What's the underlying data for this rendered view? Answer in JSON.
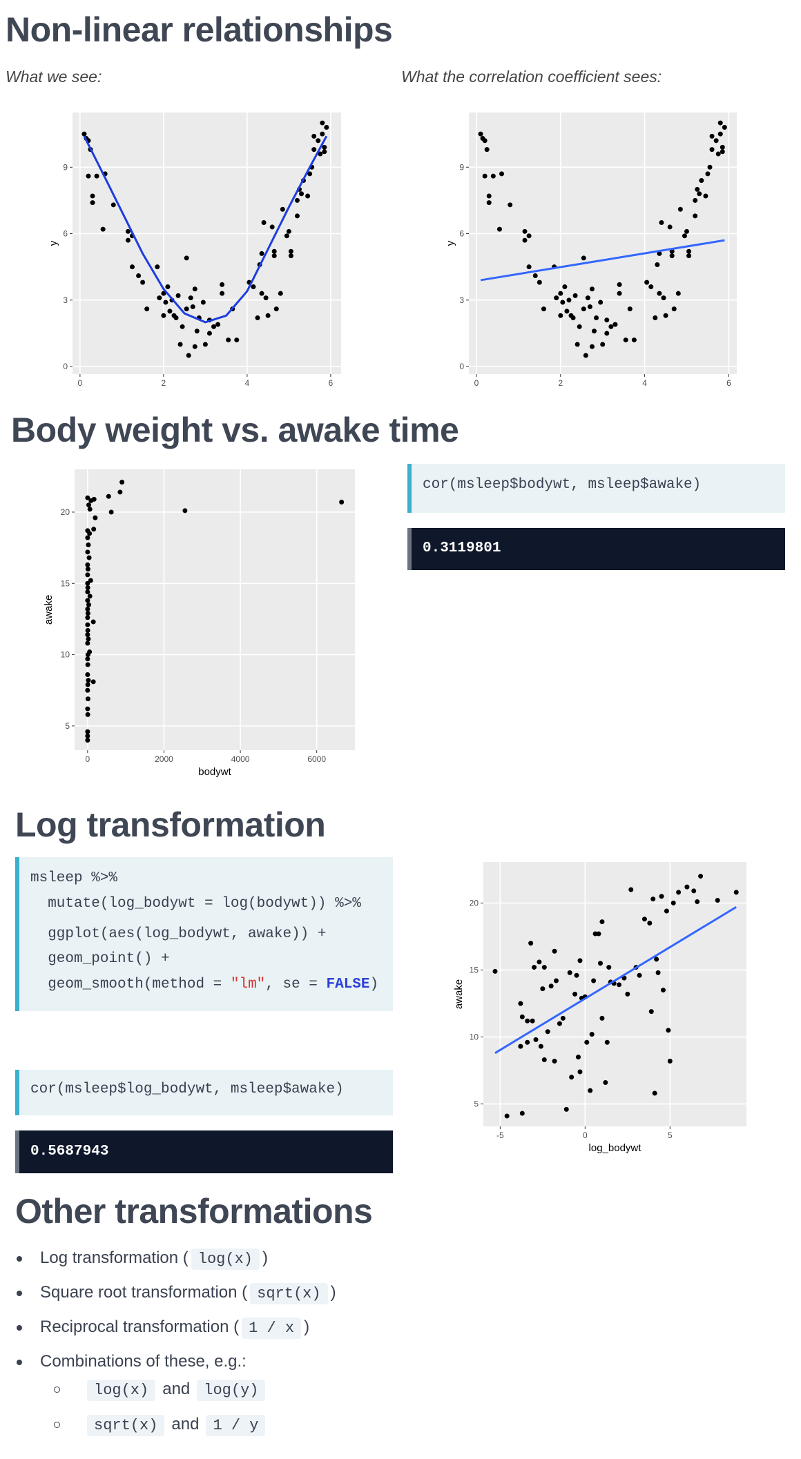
{
  "nonlinear": {
    "title": "Non-linear relationships",
    "captions": [
      "What we see:",
      "What the correlation coefficient sees:"
    ],
    "charts": [
      {
        "type": "scatter",
        "y_label": "y",
        "x": [
          0.1,
          0.15,
          0.2,
          0.25,
          0.2,
          0.4,
          0.6,
          0.3,
          0.3,
          0.55,
          0.8,
          1.15,
          1.25,
          1.15,
          1.25,
          1.4,
          1.5,
          1.6,
          1.85,
          1.9,
          2.0,
          2.05,
          2.0,
          2.1,
          2.15,
          2.2,
          2.25,
          2.3,
          2.35,
          2.45,
          2.55,
          2.4,
          2.6,
          2.55,
          2.65,
          2.7,
          2.75,
          2.8,
          2.75,
          2.85,
          2.95,
          3.0,
          3.1,
          3.1,
          3.2,
          3.3,
          3.4,
          3.4,
          3.55,
          3.65,
          3.75,
          4.05,
          4.15,
          4.25,
          4.3,
          4.35,
          4.35,
          4.4,
          4.45,
          4.5,
          4.6,
          4.65,
          4.65,
          4.7,
          4.8,
          4.85,
          4.95,
          5.0,
          5.05,
          5.05,
          5.2,
          5.2,
          5.25,
          5.3,
          5.35,
          5.45,
          5.5,
          5.55,
          5.6,
          5.7,
          5.75,
          5.8,
          5.85,
          5.85,
          5.8,
          5.9,
          5.6
        ],
        "y": [
          10.5,
          10.3,
          10.2,
          9.8,
          8.6,
          8.6,
          8.7,
          7.7,
          7.4,
          6.2,
          7.3,
          6.1,
          5.9,
          5.7,
          4.5,
          4.1,
          3.8,
          2.6,
          4.5,
          3.1,
          3.3,
          2.9,
          2.3,
          3.6,
          2.5,
          3.0,
          2.3,
          2.2,
          3.2,
          1.8,
          4.9,
          1.0,
          0.5,
          2.6,
          3.1,
          2.7,
          3.5,
          1.6,
          0.9,
          2.2,
          2.9,
          1.0,
          1.5,
          2.1,
          1.8,
          1.9,
          3.7,
          3.3,
          1.2,
          2.6,
          1.2,
          3.8,
          3.6,
          2.2,
          4.6,
          5.1,
          3.3,
          6.5,
          3.1,
          2.3,
          6.3,
          5.2,
          5.0,
          2.6,
          3.3,
          7.1,
          5.9,
          6.1,
          5.2,
          5.0,
          6.8,
          7.5,
          8.0,
          7.8,
          8.4,
          7.7,
          8.7,
          9.0,
          9.8,
          10.2,
          9.6,
          10.5,
          9.9,
          9.7,
          11.0,
          10.8,
          10.4
        ],
        "xlim": [
          -0.18,
          6.25
        ],
        "ylim": [
          -0.34,
          11.47
        ],
        "xticks": [
          0,
          2,
          4,
          6
        ],
        "yticks": [
          0,
          3,
          6,
          9
        ],
        "point_color": "#000000",
        "fit": {
          "x": [
            0.1,
            0.5,
            1,
            1.5,
            2,
            2.5,
            3,
            3.5,
            4,
            4.5,
            5,
            5.5,
            5.9
          ],
          "y": [
            10.4,
            8.9,
            7.0,
            5.1,
            3.5,
            2.4,
            2.0,
            2.3,
            3.4,
            5.3,
            7.2,
            9.0,
            10.4
          ],
          "color": "#1d3de0"
        }
      },
      {
        "type": "scatter",
        "y_label": "y",
        "x": [
          0.1,
          0.15,
          0.2,
          0.25,
          0.2,
          0.4,
          0.6,
          0.3,
          0.3,
          0.55,
          0.8,
          1.15,
          1.25,
          1.15,
          1.25,
          1.4,
          1.5,
          1.6,
          1.85,
          1.9,
          2.0,
          2.05,
          2.0,
          2.1,
          2.15,
          2.2,
          2.25,
          2.3,
          2.35,
          2.45,
          2.55,
          2.4,
          2.6,
          2.55,
          2.65,
          2.7,
          2.75,
          2.8,
          2.75,
          2.85,
          2.95,
          3.0,
          3.1,
          3.1,
          3.2,
          3.3,
          3.4,
          3.4,
          3.55,
          3.65,
          3.75,
          4.05,
          4.15,
          4.25,
          4.3,
          4.35,
          4.35,
          4.4,
          4.45,
          4.5,
          4.6,
          4.65,
          4.65,
          4.7,
          4.8,
          4.85,
          4.95,
          5.0,
          5.05,
          5.05,
          5.2,
          5.2,
          5.25,
          5.3,
          5.35,
          5.45,
          5.5,
          5.55,
          5.6,
          5.7,
          5.75,
          5.8,
          5.85,
          5.85,
          5.8,
          5.9,
          5.6
        ],
        "y": [
          10.5,
          10.3,
          10.2,
          9.8,
          8.6,
          8.6,
          8.7,
          7.7,
          7.4,
          6.2,
          7.3,
          6.1,
          5.9,
          5.7,
          4.5,
          4.1,
          3.8,
          2.6,
          4.5,
          3.1,
          3.3,
          2.9,
          2.3,
          3.6,
          2.5,
          3.0,
          2.3,
          2.2,
          3.2,
          1.8,
          4.9,
          1.0,
          0.5,
          2.6,
          3.1,
          2.7,
          3.5,
          1.6,
          0.9,
          2.2,
          2.9,
          1.0,
          1.5,
          2.1,
          1.8,
          1.9,
          3.7,
          3.3,
          1.2,
          2.6,
          1.2,
          3.8,
          3.6,
          2.2,
          4.6,
          5.1,
          3.3,
          6.5,
          3.1,
          2.3,
          6.3,
          5.2,
          5.0,
          2.6,
          3.3,
          7.1,
          5.9,
          6.1,
          5.2,
          5.0,
          6.8,
          7.5,
          8.0,
          7.8,
          8.4,
          7.7,
          8.7,
          9.0,
          9.8,
          10.2,
          9.6,
          10.5,
          9.9,
          9.7,
          11.0,
          10.8,
          10.4
        ],
        "xlim": [
          -0.18,
          6.19
        ],
        "ylim": [
          -0.34,
          11.47
        ],
        "xticks": [
          0,
          2,
          4,
          6
        ],
        "yticks": [
          0,
          3,
          6,
          9
        ],
        "point_color": "#000000",
        "fit": {
          "x": [
            0.1,
            5.9
          ],
          "y": [
            3.9,
            5.7
          ],
          "color": "#3366ff"
        }
      }
    ]
  },
  "body_weight": {
    "title": "Body weight vs. awake time",
    "chart": {
      "type": "scatter",
      "x_label": "bodywt",
      "y_label": "awake",
      "x": [
        0,
        0,
        0,
        5,
        0,
        10,
        0,
        5,
        20,
        150,
        0,
        5,
        0,
        10,
        50,
        0,
        20,
        0,
        5,
        0,
        150,
        0,
        10,
        0,
        30,
        0,
        60,
        0,
        5,
        0,
        80,
        0,
        10,
        0,
        40,
        0,
        20,
        0,
        50,
        0,
        160,
        200,
        60,
        30,
        90,
        0,
        170,
        550,
        620,
        850,
        900,
        2550,
        6650
      ],
      "y": [
        4.0,
        4.3,
        4.6,
        5.8,
        6.2,
        6.9,
        7.5,
        7.9,
        8.2,
        8.1,
        8.6,
        9.3,
        9.7,
        10.0,
        10.2,
        10.8,
        11.1,
        11.4,
        11.7,
        12.1,
        12.3,
        12.6,
        12.9,
        13.2,
        13.5,
        13.8,
        14.1,
        14.4,
        14.7,
        15.0,
        15.2,
        15.6,
        16.0,
        16.3,
        16.8,
        17.2,
        17.7,
        18.2,
        18.5,
        18.7,
        18.8,
        19.6,
        20.2,
        20.5,
        20.8,
        21.0,
        20.9,
        21.1,
        20.0,
        21.4,
        22.1,
        20.1,
        20.7
      ],
      "xlim": [
        -341,
        7000
      ],
      "ylim": [
        3.3,
        23.0
      ],
      "xticks": [
        0,
        2000,
        4000,
        6000
      ],
      "yticks": [
        5,
        10,
        15,
        20
      ],
      "point_color": "#000000"
    },
    "code": "cor(msleep$bodywt, msleep$awake)",
    "output": "0.3119801"
  },
  "log_transformation": {
    "title": "Log transformation",
    "code_lines": [
      "msleep %>%",
      "  mutate(log_bodywt = log(bodywt)) %>%",
      "  ggplot(aes(log_bodywt, awake)) +",
      "  geom_point() +"
    ],
    "code_last_line": [
      "  geom_smooth(method = ",
      "\"lm\"",
      ", se = ",
      "FALSE",
      ")"
    ],
    "code2": "cor(msleep$log_bodywt, msleep$awake)",
    "output": "0.5687943",
    "chart": {
      "type": "scatter",
      "x_label": "log_bodywt",
      "y_label": "awake",
      "x": [
        -5.3,
        -4.6,
        -3.7,
        -3.8,
        -3.7,
        -3.4,
        -3.1,
        -3.8,
        -3.4,
        -3.2,
        -3.0,
        -2.7,
        -2.5,
        -2.4,
        -2.9,
        -2.6,
        -2.4,
        -2.2,
        -2.0,
        -1.8,
        -1.7,
        -1.8,
        -1.5,
        -1.3,
        -1.1,
        -0.9,
        -0.8,
        -0.6,
        -0.5,
        -0.4,
        -0.3,
        -0.3,
        -0.2,
        0.0,
        0.1,
        0.3,
        0.4,
        0.5,
        0.6,
        0.8,
        0.9,
        1.0,
        1.0,
        1.2,
        1.3,
        1.4,
        1.5,
        1.7,
        2.0,
        2.3,
        2.5,
        2.7,
        3.0,
        3.2,
        3.5,
        3.8,
        3.9,
        4.0,
        4.1,
        4.2,
        4.3,
        4.5,
        4.6,
        4.8,
        4.9,
        5.0,
        5.2,
        5.5,
        6.0,
        6.4,
        6.6,
        6.8,
        7.8,
        8.9
      ],
      "y": [
        14.9,
        4.1,
        4.3,
        12.5,
        11.5,
        11.2,
        11.2,
        9.3,
        9.6,
        17.0,
        15.2,
        15.6,
        13.6,
        15.2,
        9.8,
        9.3,
        8.3,
        10.4,
        13.8,
        16.4,
        14.2,
        8.2,
        11.0,
        11.4,
        4.6,
        14.8,
        7.0,
        13.2,
        14.6,
        8.5,
        7.4,
        15.7,
        12.9,
        13.0,
        9.6,
        6.0,
        10.2,
        14.2,
        17.7,
        17.7,
        15.5,
        18.6,
        11.4,
        6.6,
        9.6,
        15.2,
        14.1,
        14.0,
        13.9,
        14.4,
        13.2,
        21.0,
        15.2,
        14.6,
        18.8,
        18.5,
        11.9,
        20.3,
        5.8,
        15.8,
        14.8,
        20.5,
        13.5,
        19.4,
        10.5,
        8.2,
        20.0,
        20.8,
        21.2,
        20.9,
        20.1,
        22.0,
        20.2,
        20.8
      ],
      "xlim": [
        -5.99,
        9.5
      ],
      "ylim": [
        3.33,
        23.06
      ],
      "xticks": [
        -5,
        0,
        5
      ],
      "yticks": [
        5,
        10,
        15,
        20
      ],
      "point_color": "#000000",
      "fit": {
        "x": [
          -5.3,
          8.9
        ],
        "y": [
          8.8,
          19.7
        ],
        "color": "#3366ff"
      }
    }
  },
  "other": {
    "title": "Other transformations",
    "items": [
      {
        "text": "Log transformation (",
        "code": "log(x)",
        "after": ")"
      },
      {
        "text": "Square root transformation (",
        "code": "sqrt(x)",
        "after": ")"
      },
      {
        "text": "Reciprocal transformation (",
        "code": "1 / x",
        "after": ")"
      }
    ],
    "combo": "Combinations of these, e.g.:",
    "subitems": [
      {
        "first": "log(x)",
        "joiner": "and",
        "second": "log(y)"
      },
      {
        "first": "sqrt(x)",
        "joiner": "and",
        "second": "1 / y"
      }
    ]
  }
}
